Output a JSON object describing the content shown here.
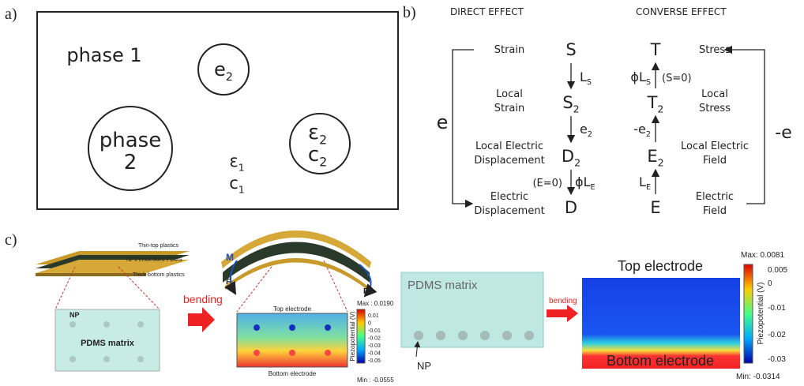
{
  "panel_a": {
    "label": "a)",
    "phase1": "phase 1",
    "inclusion_top": {
      "main": "e",
      "sub": "2"
    },
    "phase2": [
      "phase",
      "2"
    ],
    "inclusion_right": [
      {
        "main": "ε",
        "sub": "2"
      },
      {
        "main": "c",
        "sub": "2"
      }
    ],
    "matrix": [
      {
        "main": "ε",
        "sub": "1"
      },
      {
        "main": "c",
        "sub": "1"
      }
    ]
  },
  "panel_b": {
    "label": "b)",
    "direct_heading": "DIRECT EFFECT",
    "converse_heading": "CONVERSE EFFECT",
    "left_labels": [
      [
        "Strain"
      ],
      [
        "Local",
        "Strain"
      ],
      [
        "Local Electric",
        "Displacement"
      ],
      [
        "Electric",
        "Displacement"
      ]
    ],
    "direct_symbols": [
      {
        "main": "S"
      },
      {
        "main": "S",
        "sub": "2"
      },
      {
        "main": "D",
        "sub": "2"
      },
      {
        "main": "D"
      }
    ],
    "converse_symbols": [
      {
        "main": "T"
      },
      {
        "main": "T",
        "sub": "2"
      },
      {
        "main": "E",
        "sub": "2"
      },
      {
        "main": "E"
      }
    ],
    "right_labels": [
      [
        "Stress"
      ],
      [
        "Local",
        "Stress"
      ],
      [
        "Local Electric",
        "Field"
      ],
      [
        "Electric",
        "Field"
      ]
    ],
    "direct_arrows": [
      {
        "main": "L",
        "sub": "S"
      },
      {
        "main": "e",
        "sub": "2"
      },
      {
        "pre": "ϕ",
        "main": "L",
        "sub": "E"
      }
    ],
    "direct_condition": "(E=0)",
    "converse_arrows": [
      {
        "pre": "ϕ",
        "main": "L",
        "sub": "S"
      },
      {
        "pre": "-",
        "main": "e",
        "sub": "2"
      },
      {
        "main": "L",
        "sub": "E"
      }
    ],
    "converse_condition": "(S=0)",
    "left_bracket": "e",
    "right_bracket": "-e"
  },
  "panel_c": {
    "label": "c)",
    "layers": [
      "Thin-top plastics",
      "NPs-embedded PDMS",
      "Thick-bottom plastics"
    ],
    "np": "NP",
    "matrix": "PDMS matrix",
    "bending": "bending",
    "moment": "M",
    "force": "F",
    "sim_left": {
      "top": "Top electrode",
      "bottom": "Bottom electrode",
      "max": "Max : 0.0190",
      "min": "Min : -0.0555",
      "ticks": [
        "0.01",
        "0",
        "-0.01",
        "-0.02",
        "-0.03",
        "-0.04",
        "-0.05"
      ],
      "axis": "Piezopotential (V)"
    },
    "right_matrix": "PDMS matrix",
    "right_np": "NP",
    "right_bending": "bending",
    "sim_right": {
      "top": "Top electrode",
      "bottom": "Bottom electrode",
      "max": "Max: 0.0081",
      "min": "Min: -0.0314",
      "ticks": [
        "0.005",
        "0",
        "-0.01",
        "-0.02",
        "-0.03"
      ],
      "axis": "Piezopotential (V)"
    }
  }
}
